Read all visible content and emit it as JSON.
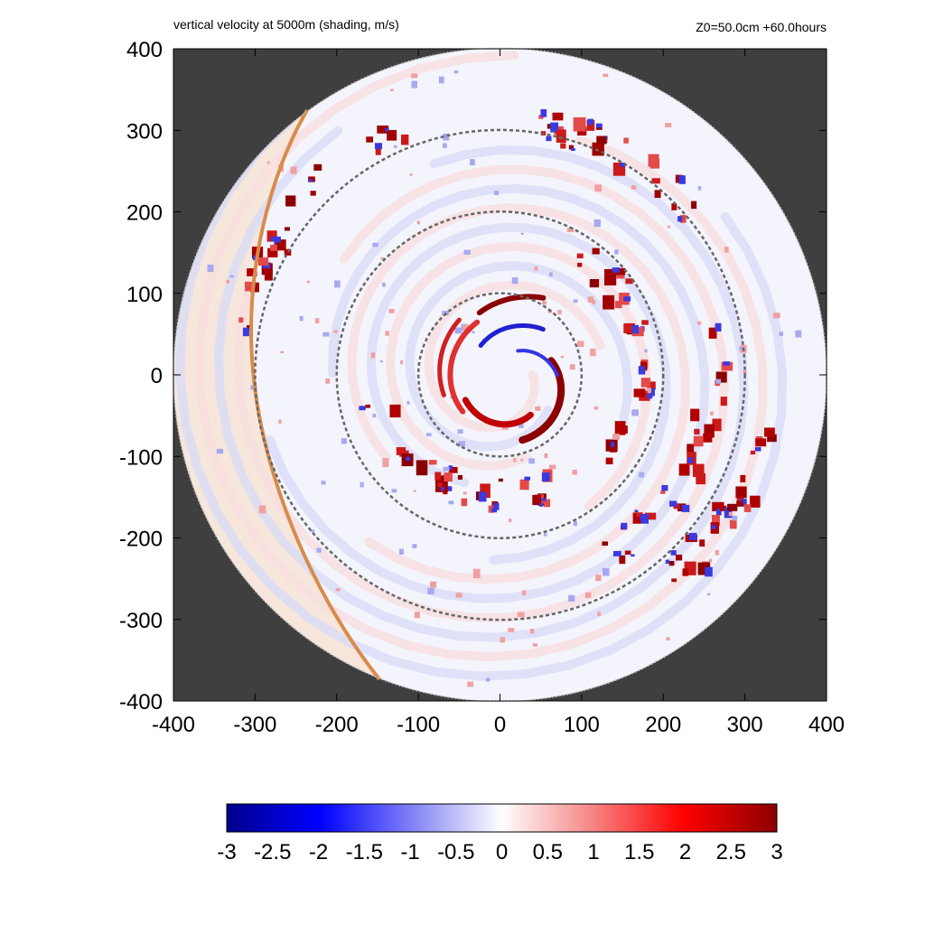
{
  "chart_data": {
    "type": "heatmap",
    "title": "vertical velocity at 5000m (shading, m/s)",
    "annotation_right": "Z0=50.0cm  +60.0hours",
    "xlabel": "",
    "ylabel": "",
    "xlim": [
      -400,
      400
    ],
    "ylim": [
      -400,
      400
    ],
    "x_ticks": [
      -400,
      -300,
      -200,
      -100,
      0,
      100,
      200,
      300,
      400
    ],
    "y_ticks": [
      400,
      300,
      200,
      100,
      0,
      -100,
      -200,
      -300,
      -400
    ],
    "x_tick_labels": [
      "-400",
      "-300",
      "-200",
      "-100",
      "0",
      "100",
      "200",
      "300",
      "400"
    ],
    "y_tick_labels": [
      "400",
      "300",
      "200",
      "100",
      "0",
      "-100",
      "-200",
      "-300",
      "-400"
    ],
    "domain_radius": 400,
    "reference_circle_radii": [
      100,
      200,
      300
    ],
    "colorbar": {
      "min": -3,
      "max": 3,
      "ticks": [
        -3,
        -2.5,
        -2,
        -1.5,
        -1,
        -0.5,
        0,
        0.5,
        1,
        1.5,
        2,
        2.5,
        3
      ],
      "tick_labels": [
        "-3",
        "-2.5",
        "-2",
        "-1.5",
        "-1",
        "-0.5",
        "0",
        "0.5",
        "1",
        "1.5",
        "2",
        "2.5",
        "3"
      ]
    },
    "colors": {
      "background": "#3f3f3f",
      "negative_max": "#00008b",
      "negative_mid": "#0000ff",
      "zero": "#ffffff",
      "positive_mid": "#ff0000",
      "positive_max": "#8b0000",
      "front_line": "#d98b4a",
      "circle": "#666666"
    },
    "grid": false,
    "legend": "colorbar-bottom"
  }
}
